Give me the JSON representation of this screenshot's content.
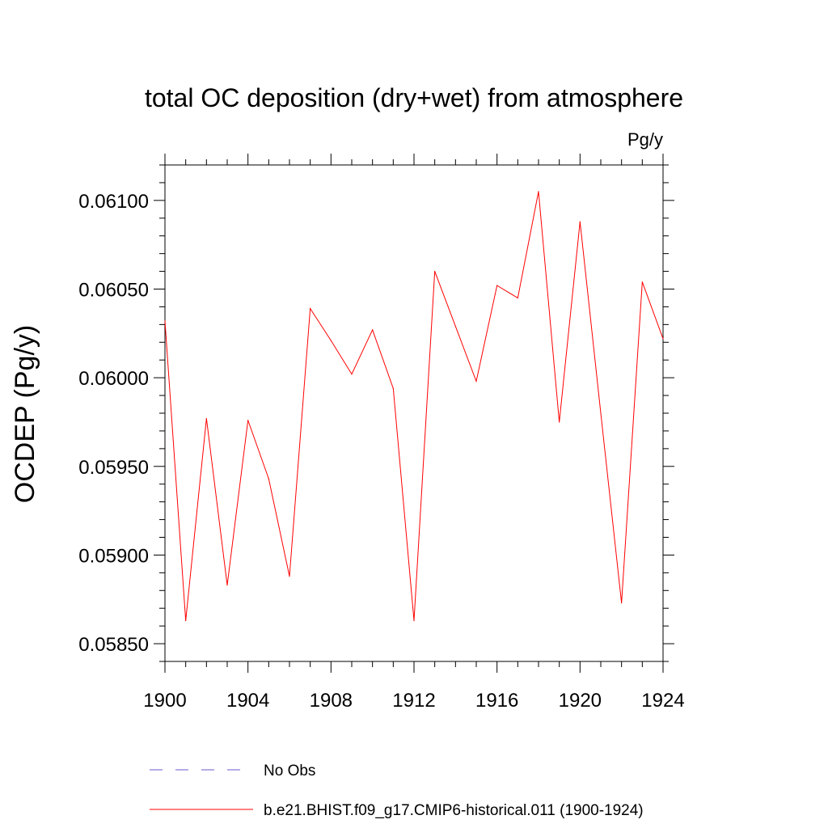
{
  "chart_data": {
    "type": "line",
    "title": "total OC deposition (dry+wet) from atmosphere",
    "units_label": "Pg/y",
    "ylabel": "OCDEP  (Pg/y)",
    "xlabel": "",
    "xlim": [
      1900,
      1924
    ],
    "ylim": [
      0.0584,
      0.0612
    ],
    "x_ticks": [
      1900,
      1904,
      1908,
      1912,
      1916,
      1920,
      1924
    ],
    "x_tick_labels": [
      "1900",
      "1904",
      "1908",
      "1912",
      "1916",
      "1920",
      "1924"
    ],
    "y_ticks": [
      0.0585,
      0.059,
      0.0595,
      0.06,
      0.0605,
      0.061
    ],
    "y_tick_labels": [
      "0.05850",
      "0.05900",
      "0.05950",
      "0.06000",
      "0.06050",
      "0.06100"
    ],
    "grid": false,
    "legend_position": "bottom",
    "x": [
      1900,
      1901,
      1902,
      1903,
      1904,
      1905,
      1906,
      1907,
      1908,
      1909,
      1910,
      1911,
      1912,
      1913,
      1914,
      1915,
      1916,
      1917,
      1918,
      1919,
      1920,
      1921,
      1922,
      1923,
      1924
    ],
    "series": [
      {
        "name": "b.e21.BHIST.f09_g17.CMIP6-historical.011 (1900-1924)",
        "color": "#ff0000",
        "dash": "solid",
        "values": [
          0.06032,
          0.05863,
          0.05977,
          0.05883,
          0.05976,
          0.05943,
          0.05888,
          0.06039,
          0.06021,
          0.06002,
          0.06027,
          0.05994,
          0.05863,
          0.0606,
          0.06029,
          0.05998,
          0.06052,
          0.06045,
          0.06105,
          0.05975,
          0.06088,
          0.0598,
          0.05873,
          0.06054,
          0.06022
        ]
      }
    ],
    "legend": [
      {
        "label": "No Obs",
        "color": "#6a5acd",
        "dash": "dashed"
      },
      {
        "label": "b.e21.BHIST.f09_g17.CMIP6-historical.011 (1900-1924)",
        "color": "#ff0000",
        "dash": "solid"
      }
    ]
  }
}
